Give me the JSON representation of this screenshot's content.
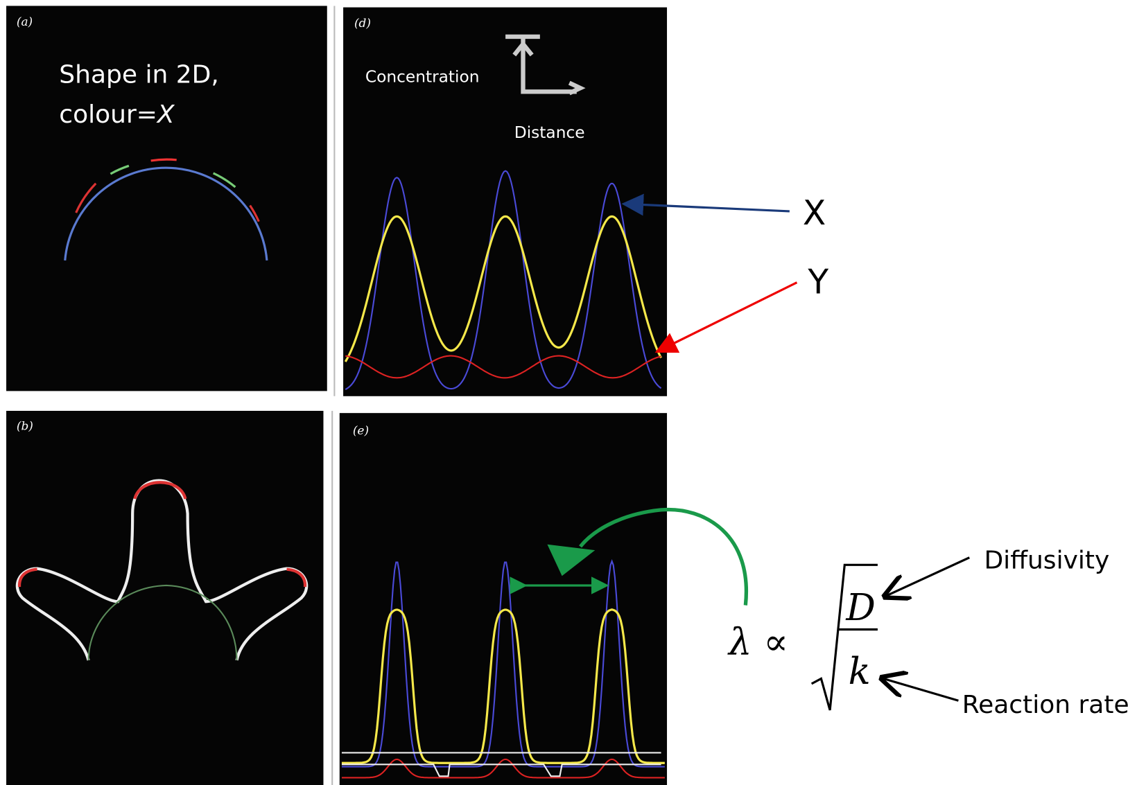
{
  "panels": {
    "a": {
      "label": "(a)",
      "text_line1": "Shape in 2D,",
      "text_line2_prefix": "colour=",
      "text_line2_var": "X"
    },
    "d": {
      "label": "(d)",
      "y_axis": "Concentration",
      "x_axis": "Distance"
    },
    "b": {
      "label": "(b)"
    },
    "e": {
      "label": "(e)"
    }
  },
  "annotations": {
    "x_curve": "X",
    "y_curve": "Y",
    "formula_lhs": "λ ∝",
    "numerator": "D",
    "denominator": "k",
    "diffusivity": "Diffusivity",
    "reaction_rate": "Reaction rate"
  }
}
